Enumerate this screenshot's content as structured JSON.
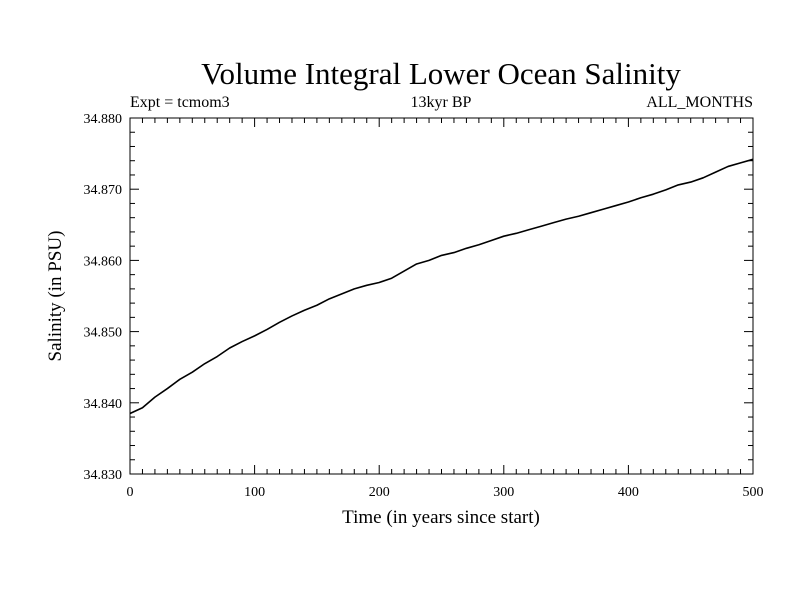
{
  "chart_data": {
    "type": "line",
    "title": "Volume Integral Lower Ocean Salinity",
    "subtitle_left": "Expt = tcmom3",
    "subtitle_center": "13kyr BP",
    "subtitle_right": "ALL_MONTHS",
    "xlabel": "Time (in years since start)",
    "ylabel": "Salinity (in PSU)",
    "xlim": [
      0,
      500
    ],
    "ylim": [
      34.83,
      34.88
    ],
    "x_ticks": [
      0,
      100,
      200,
      300,
      400,
      500
    ],
    "x_tick_labels": [
      "0",
      "100",
      "200",
      "300",
      "400",
      "500"
    ],
    "y_ticks": [
      34.83,
      34.84,
      34.85,
      34.86,
      34.87,
      34.88
    ],
    "y_tick_labels": [
      "34.830",
      "34.840",
      "34.850",
      "34.860",
      "34.870",
      "34.880"
    ],
    "grid": false,
    "series": [
      {
        "x": [
          0,
          10,
          20,
          30,
          40,
          50,
          60,
          70,
          80,
          90,
          100,
          110,
          120,
          130,
          140,
          150,
          160,
          170,
          180,
          190,
          200,
          210,
          220,
          230,
          240,
          250,
          260,
          270,
          280,
          290,
          300,
          310,
          320,
          330,
          340,
          350,
          360,
          370,
          380,
          390,
          400,
          410,
          420,
          430,
          440,
          450,
          460,
          470,
          480,
          490,
          500
        ],
        "y": [
          34.8385,
          34.8393,
          34.8408,
          34.842,
          34.8433,
          34.8443,
          34.8455,
          34.8465,
          34.8477,
          34.8486,
          34.8494,
          34.8503,
          34.8513,
          34.8522,
          34.853,
          34.8537,
          34.8546,
          34.8553,
          34.856,
          34.8565,
          34.8569,
          34.8575,
          34.8585,
          34.8595,
          34.86,
          34.8607,
          34.8611,
          34.8617,
          34.8622,
          34.8628,
          34.8634,
          34.8638,
          34.8643,
          34.8648,
          34.8653,
          34.8658,
          34.8662,
          34.8667,
          34.8672,
          34.8677,
          34.8682,
          34.8688,
          34.8693,
          34.8699,
          34.8706,
          34.871,
          34.8716,
          34.8724,
          34.8732,
          34.8737,
          34.8742
        ]
      }
    ]
  }
}
